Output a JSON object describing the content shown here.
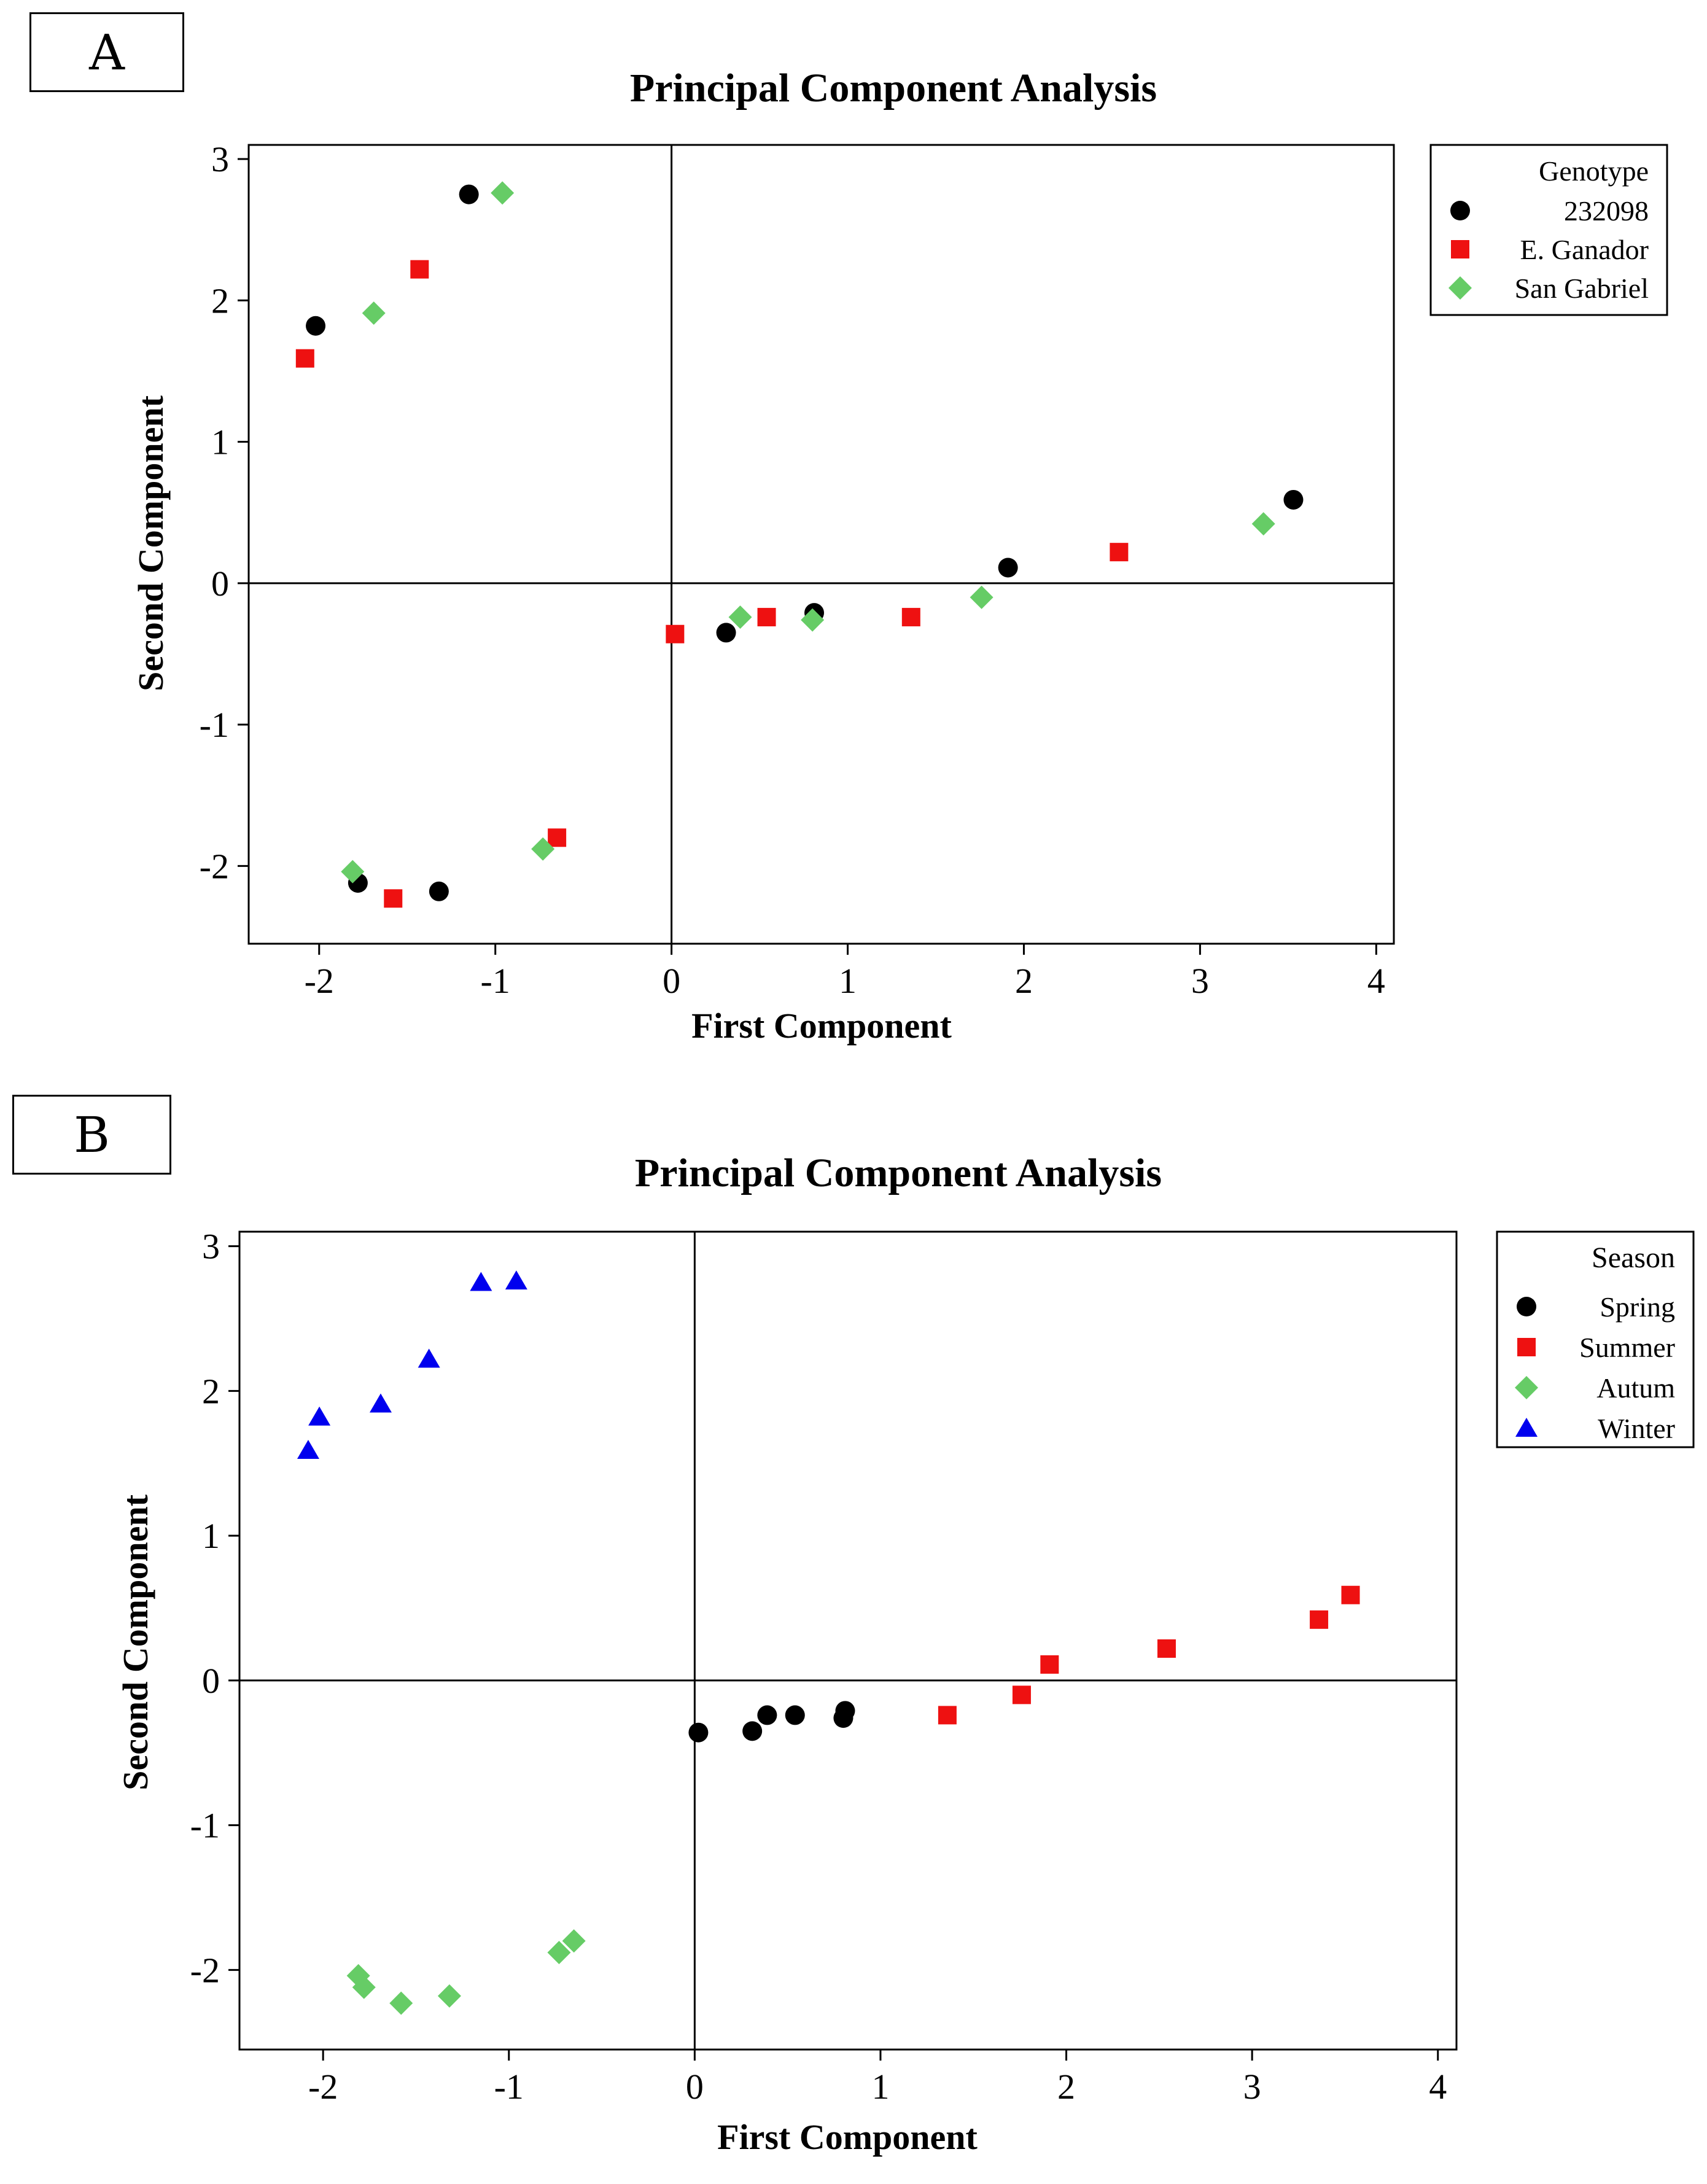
{
  "colors": {
    "black": "#000000",
    "red": "#ee1111",
    "green": "#66cc66",
    "blue": "#0000ee"
  },
  "panel_labels": {
    "a": "A",
    "b": "B"
  },
  "chart_data": [
    {
      "type": "scatter",
      "title": "Principal Component Analysis",
      "xlabel": "First Component",
      "ylabel": "Second Component",
      "xlim": [
        -2.4,
        4.1
      ],
      "ylim": [
        -2.55,
        3.1
      ],
      "xticks": [
        -2,
        -1,
        0,
        1,
        2,
        3,
        4
      ],
      "yticks": [
        -2,
        -1,
        0,
        1,
        2,
        3
      ],
      "tick_labels_x": [
        "-2",
        "-1",
        "0",
        "1",
        "2",
        "3",
        "4"
      ],
      "tick_labels_y": [
        "-2",
        "-1",
        "0",
        "1",
        "2",
        "3"
      ],
      "reference_lines": {
        "x": 0,
        "y": 0
      },
      "legend": {
        "title": "Genotype",
        "position": "outside-top-right"
      },
      "series": [
        {
          "name": "232098",
          "marker": "circle",
          "color": "#000000",
          "points": [
            [
              -2.02,
              1.82
            ],
            [
              -1.15,
              2.75
            ],
            [
              -1.78,
              -2.12
            ],
            [
              -1.32,
              -2.18
            ],
            [
              0.31,
              -0.35
            ],
            [
              0.81,
              -0.21
            ],
            [
              1.91,
              0.11
            ],
            [
              3.53,
              0.59
            ]
          ]
        },
        {
          "name": "E. Ganador",
          "marker": "square",
          "color": "#ee1111",
          "points": [
            [
              -2.08,
              1.59
            ],
            [
              -1.43,
              2.22
            ],
            [
              -1.58,
              -2.23
            ],
            [
              -0.65,
              -1.8
            ],
            [
              0.02,
              -0.36
            ],
            [
              0.54,
              -0.24
            ],
            [
              1.36,
              -0.24
            ],
            [
              2.54,
              0.22
            ]
          ]
        },
        {
          "name": "San Gabriel",
          "marker": "diamond",
          "color": "#66cc66",
          "points": [
            [
              -1.69,
              1.91
            ],
            [
              -0.96,
              2.76
            ],
            [
              -1.81,
              -2.04
            ],
            [
              -0.73,
              -1.88
            ],
            [
              0.39,
              -0.24
            ],
            [
              0.8,
              -0.26
            ],
            [
              1.76,
              -0.1
            ],
            [
              3.36,
              0.42
            ]
          ]
        }
      ]
    },
    {
      "type": "scatter",
      "title": "Principal Component Analysis",
      "xlabel": "First Component",
      "ylabel": "Second Component",
      "xlim": [
        -2.45,
        4.1
      ],
      "ylim": [
        -2.55,
        3.1
      ],
      "xticks": [
        -2,
        -1,
        0,
        1,
        2,
        3,
        4
      ],
      "yticks": [
        -2,
        -1,
        0,
        1,
        2,
        3
      ],
      "tick_labels_x": [
        "-2",
        "-1",
        "0",
        "1",
        "2",
        "3",
        "4"
      ],
      "tick_labels_y": [
        "-2",
        "-1",
        "0",
        "1",
        "2",
        "3"
      ],
      "reference_lines": {
        "x": 0,
        "y": 0
      },
      "legend": {
        "title": "Season",
        "position": "outside-top-right"
      },
      "series": [
        {
          "name": "Spring",
          "marker": "circle",
          "color": "#000000",
          "points": [
            [
              0.02,
              -0.36
            ],
            [
              0.31,
              -0.35
            ],
            [
              0.39,
              -0.24
            ],
            [
              0.54,
              -0.24
            ],
            [
              0.8,
              -0.26
            ],
            [
              0.81,
              -0.21
            ]
          ]
        },
        {
          "name": "Summer",
          "marker": "square",
          "color": "#ee1111",
          "points": [
            [
              1.36,
              -0.24
            ],
            [
              1.76,
              -0.1
            ],
            [
              1.91,
              0.11
            ],
            [
              2.54,
              0.22
            ],
            [
              3.36,
              0.42
            ],
            [
              3.53,
              0.59
            ]
          ]
        },
        {
          "name": "Autum",
          "marker": "diamond",
          "color": "#66cc66",
          "points": [
            [
              -1.81,
              -2.04
            ],
            [
              -1.78,
              -2.12
            ],
            [
              -1.58,
              -2.23
            ],
            [
              -1.32,
              -2.18
            ],
            [
              -0.73,
              -1.88
            ],
            [
              -0.65,
              -1.8
            ]
          ]
        },
        {
          "name": "Winter",
          "marker": "triangle",
          "color": "#0000ee",
          "points": [
            [
              -2.08,
              1.59
            ],
            [
              -2.02,
              1.82
            ],
            [
              -1.69,
              1.91
            ],
            [
              -1.43,
              2.22
            ],
            [
              -1.15,
              2.75
            ],
            [
              -0.96,
              2.76
            ]
          ]
        }
      ]
    }
  ]
}
